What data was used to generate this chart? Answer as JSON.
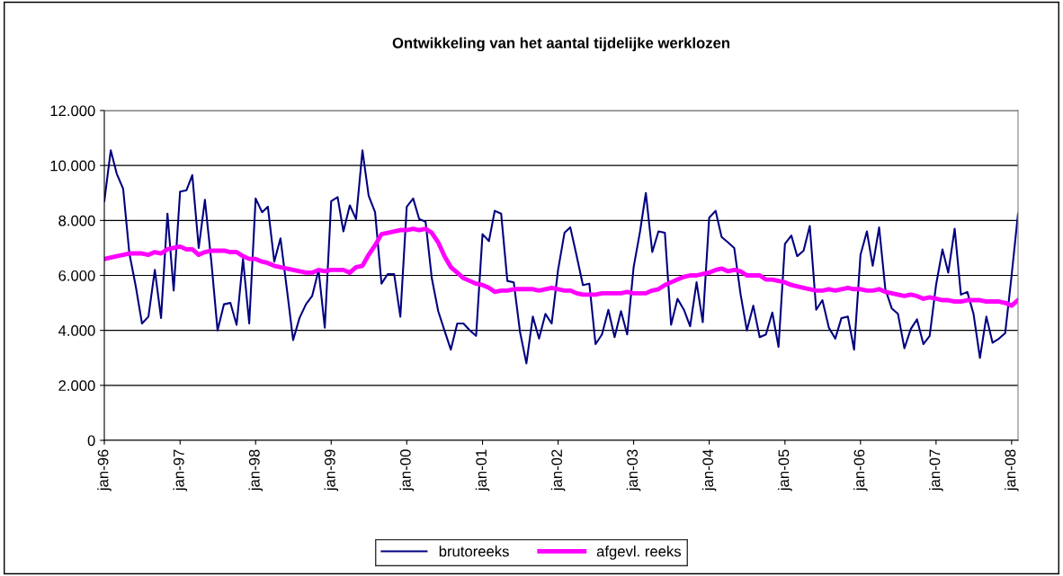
{
  "chart_data": {
    "type": "line",
    "title": "Ontwikkeling van het aantal tijdelijke werklozen",
    "x": [
      "1996-01",
      "1996-02",
      "1996-03",
      "1996-04",
      "1996-05",
      "1996-06",
      "1996-07",
      "1996-08",
      "1996-09",
      "1996-10",
      "1996-11",
      "1996-12",
      "1997-01",
      "1997-02",
      "1997-03",
      "1997-04",
      "1997-05",
      "1997-06",
      "1997-07",
      "1997-08",
      "1997-09",
      "1997-10",
      "1997-11",
      "1997-12",
      "1998-01",
      "1998-02",
      "1998-03",
      "1998-04",
      "1998-05",
      "1998-06",
      "1998-07",
      "1998-08",
      "1998-09",
      "1998-10",
      "1998-11",
      "1998-12",
      "1999-01",
      "1999-02",
      "1999-03",
      "1999-04",
      "1999-05",
      "1999-06",
      "1999-07",
      "1999-08",
      "1999-09",
      "1999-10",
      "1999-11",
      "1999-12",
      "2000-01",
      "2000-02",
      "2000-03",
      "2000-04",
      "2000-05",
      "2000-06",
      "2000-07",
      "2000-08",
      "2000-09",
      "2000-10",
      "2000-11",
      "2000-12",
      "2001-01",
      "2001-02",
      "2001-03",
      "2001-04",
      "2001-05",
      "2001-06",
      "2001-07",
      "2001-08",
      "2001-09",
      "2001-10",
      "2001-11",
      "2001-12",
      "2002-01",
      "2002-02",
      "2002-03",
      "2002-04",
      "2002-05",
      "2002-06",
      "2002-07",
      "2002-08",
      "2002-09",
      "2002-10",
      "2002-11",
      "2002-12",
      "2003-01",
      "2003-02",
      "2003-03",
      "2003-04",
      "2003-05",
      "2003-06",
      "2003-07",
      "2003-08",
      "2003-09",
      "2003-10",
      "2003-11",
      "2003-12",
      "2004-01",
      "2004-02",
      "2004-03",
      "2004-04",
      "2004-05",
      "2004-06",
      "2004-07",
      "2004-08",
      "2004-09",
      "2004-10",
      "2004-11",
      "2004-12",
      "2005-01",
      "2005-02",
      "2005-03",
      "2005-04",
      "2005-05",
      "2005-06",
      "2005-07",
      "2005-08",
      "2005-09",
      "2005-10",
      "2005-11",
      "2005-12",
      "2006-01",
      "2006-02",
      "2006-03",
      "2006-04",
      "2006-05",
      "2006-06",
      "2006-07",
      "2006-08",
      "2006-09",
      "2006-10",
      "2006-11",
      "2006-12",
      "2007-01",
      "2007-02",
      "2007-03",
      "2007-04",
      "2007-05",
      "2007-06",
      "2007-07",
      "2007-08",
      "2007-09",
      "2007-10",
      "2007-11",
      "2007-12",
      "2008-01",
      "2008-02"
    ],
    "series": [
      {
        "name": "brutoreeks",
        "color": "#000080",
        "values": [
          8700,
          10550,
          9700,
          9150,
          6800,
          5600,
          4250,
          4500,
          6200,
          4450,
          8250,
          5450,
          9050,
          9100,
          9650,
          7000,
          8750,
          6500,
          4000,
          4950,
          5000,
          4200,
          6600,
          4250,
          8800,
          8300,
          8500,
          6500,
          7350,
          5500,
          3650,
          4450,
          4950,
          5250,
          6200,
          4100,
          8700,
          8850,
          7600,
          8550,
          8050,
          10550,
          8900,
          8300,
          5700,
          6050,
          6050,
          4500,
          8500,
          8800,
          8050,
          7950,
          5900,
          4700,
          4000,
          3300,
          4250,
          4250,
          4000,
          3800,
          7500,
          7250,
          8350,
          8250,
          5800,
          5750,
          3950,
          2800,
          4500,
          3700,
          4600,
          4250,
          6200,
          7550,
          7750,
          6700,
          5650,
          5700,
          3500,
          3850,
          4750,
          3750,
          4700,
          3850,
          6300,
          7600,
          9000,
          6850,
          7600,
          7550,
          4200,
          5150,
          4750,
          4150,
          5750,
          4300,
          8100,
          8350,
          7400,
          7200,
          7000,
          5300,
          4000,
          4900,
          3750,
          3850,
          4650,
          3400,
          7150,
          7450,
          6700,
          6900,
          7800,
          4750,
          5100,
          4100,
          3700,
          4450,
          4500,
          3300,
          6750,
          7600,
          6350,
          7750,
          5500,
          4800,
          4600,
          3350,
          4050,
          4400,
          3500,
          3800,
          5650,
          6950,
          6100,
          7700,
          5300,
          5400,
          4600,
          3000,
          4500,
          3550,
          3700,
          3900,
          6000,
          8250
        ]
      },
      {
        "name": "afgevl. reeks",
        "color": "#ff00ff",
        "values": [
          6600,
          6650,
          6700,
          6750,
          6800,
          6800,
          6800,
          6750,
          6850,
          6800,
          6950,
          7000,
          7050,
          6950,
          6950,
          6750,
          6850,
          6900,
          6900,
          6900,
          6850,
          6850,
          6700,
          6600,
          6600,
          6500,
          6450,
          6350,
          6300,
          6250,
          6200,
          6150,
          6100,
          6100,
          6200,
          6150,
          6200,
          6200,
          6200,
          6100,
          6300,
          6350,
          6750,
          7100,
          7500,
          7550,
          7600,
          7650,
          7650,
          7700,
          7650,
          7700,
          7550,
          7200,
          6700,
          6300,
          6100,
          5900,
          5800,
          5700,
          5650,
          5550,
          5400,
          5450,
          5450,
          5500,
          5500,
          5500,
          5500,
          5450,
          5500,
          5550,
          5500,
          5450,
          5450,
          5350,
          5300,
          5300,
          5300,
          5350,
          5350,
          5350,
          5350,
          5400,
          5350,
          5350,
          5350,
          5450,
          5500,
          5650,
          5750,
          5850,
          5950,
          6000,
          6000,
          6050,
          6100,
          6200,
          6250,
          6150,
          6200,
          6150,
          6000,
          6000,
          6000,
          5850,
          5850,
          5800,
          5750,
          5650,
          5600,
          5550,
          5500,
          5450,
          5450,
          5500,
          5450,
          5500,
          5550,
          5500,
          5500,
          5450,
          5450,
          5500,
          5400,
          5350,
          5300,
          5250,
          5300,
          5250,
          5150,
          5200,
          5150,
          5100,
          5100,
          5050,
          5050,
          5100,
          5100,
          5100,
          5050,
          5050,
          5050,
          5000,
          4900,
          5100
        ]
      }
    ],
    "xlim": [
      "1996-01",
      "2008-02"
    ],
    "xticks": [
      {
        "value": "1996-01",
        "label": "jan-96"
      },
      {
        "value": "1997-01",
        "label": "jan-97"
      },
      {
        "value": "1998-01",
        "label": "jan-98"
      },
      {
        "value": "1999-01",
        "label": "jan-99"
      },
      {
        "value": "2000-01",
        "label": "jan-00"
      },
      {
        "value": "2001-01",
        "label": "jan-01"
      },
      {
        "value": "2002-01",
        "label": "jan-02"
      },
      {
        "value": "2003-01",
        "label": "jan-03"
      },
      {
        "value": "2004-01",
        "label": "jan-04"
      },
      {
        "value": "2005-01",
        "label": "jan-05"
      },
      {
        "value": "2006-01",
        "label": "jan-06"
      },
      {
        "value": "2007-01",
        "label": "jan-07"
      },
      {
        "value": "2008-01",
        "label": "jan-08"
      }
    ],
    "ylim": [
      0,
      12000
    ],
    "yticks": [
      0,
      {
        "value": 2000,
        "label": "2.000"
      },
      {
        "value": 4000,
        "label": "4.000"
      },
      {
        "value": 6000,
        "label": "6.000"
      },
      {
        "value": 8000,
        "label": "8.000"
      },
      {
        "value": 10000,
        "label": "10.000"
      },
      {
        "value": 12000,
        "label": "12.000"
      }
    ],
    "grid": "y",
    "legend": "bottom",
    "marker": "none",
    "line_style": "solid"
  }
}
